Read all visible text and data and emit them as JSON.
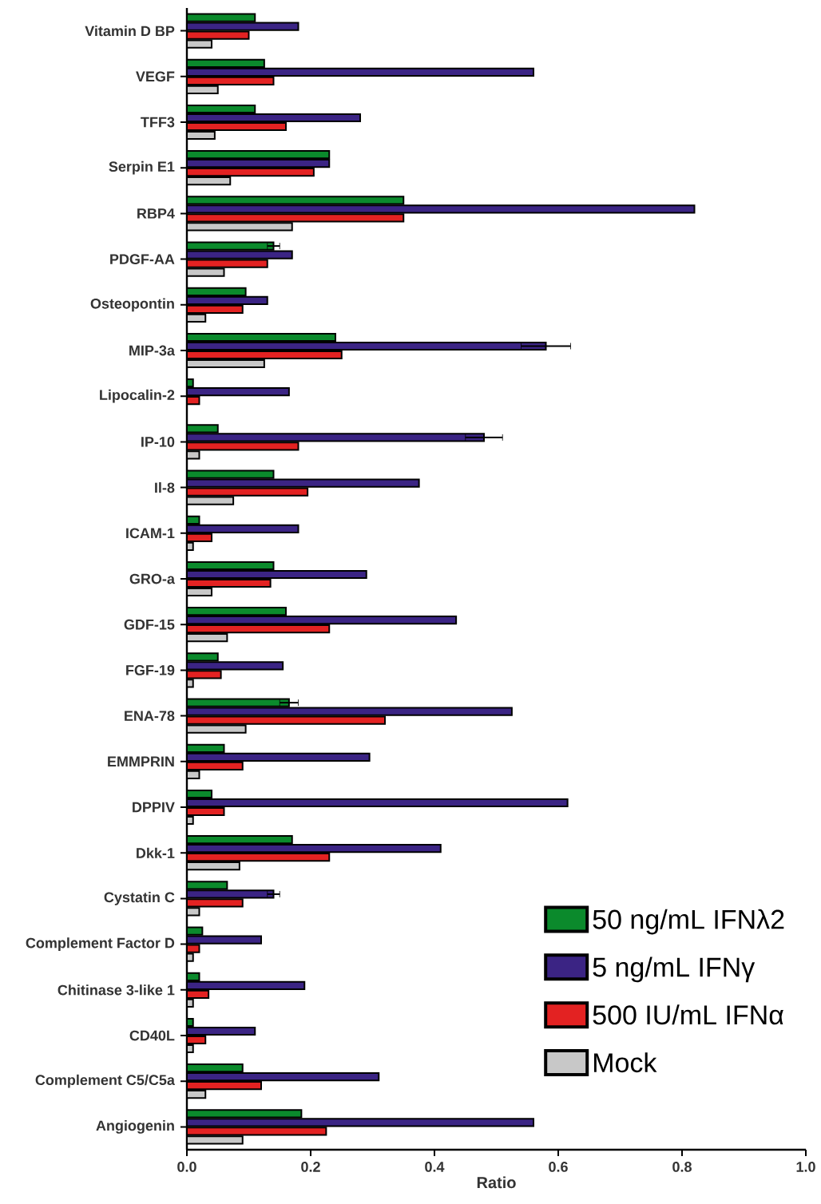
{
  "chart_data": {
    "type": "bar",
    "orientation": "horizontal",
    "xlabel": "Ratio",
    "legend": "bottom right",
    "categories": [
      "Vitamin D BP",
      "VEGF",
      "TFF3",
      "Serpin E1",
      "RBP4",
      "PDGF-AA",
      "Osteopontin",
      "MIP-3a",
      "Lipocalin-2",
      "IP-10",
      "Il-8",
      "ICAM-1",
      "GRO-a",
      "GDF-15",
      "FGF-19",
      "ENA-78",
      "EMMPRIN",
      "DPPIV",
      "Dkk-1",
      "Cystatin C",
      "Complement Factor D",
      "Chitinase 3-like 1",
      "CD40L",
      "Complement C5/C5a",
      "Angiogenin"
    ],
    "xlim": [
      0,
      1
    ],
    "xticks": [
      {
        "value": 0,
        "label": "0.0"
      },
      {
        "value": 0.2,
        "label": "0.2"
      },
      {
        "value": 0.4,
        "label": "0.4"
      },
      {
        "value": 0.6,
        "label": "0.6"
      },
      {
        "value": 0.8,
        "label": "0.8"
      },
      {
        "value": 1,
        "label": "1.0"
      }
    ],
    "series": [
      {
        "name": "50 ng/mL IFNλ2",
        "color": "#0b8a2c",
        "values": [
          0.11,
          0.125,
          0.11,
          0.23,
          0.35,
          0.14,
          0.095,
          0.24,
          0.01,
          0.05,
          0.14,
          0.02,
          0.14,
          0.16,
          0.05,
          0.165,
          0.06,
          0.04,
          0.17,
          0.065,
          0.025,
          0.02,
          0.01,
          0.09,
          0.185
        ],
        "errors": [
          null,
          null,
          null,
          null,
          null,
          0.01,
          null,
          null,
          null,
          null,
          null,
          null,
          null,
          null,
          null,
          0.015,
          null,
          null,
          null,
          null,
          null,
          null,
          null,
          null,
          null
        ]
      },
      {
        "name": "5 ng/mL IFNγ",
        "color": "#3b2484",
        "values": [
          0.18,
          0.56,
          0.28,
          0.23,
          0.82,
          0.17,
          0.13,
          0.58,
          0.165,
          0.48,
          0.375,
          0.18,
          0.29,
          0.435,
          0.155,
          0.525,
          0.295,
          0.615,
          0.41,
          0.14,
          0.12,
          0.19,
          0.11,
          0.31,
          0.56
        ],
        "errors": [
          null,
          null,
          null,
          null,
          null,
          null,
          null,
          0.04,
          null,
          0.03,
          null,
          null,
          null,
          null,
          null,
          null,
          null,
          null,
          null,
          0.01,
          null,
          null,
          null,
          null,
          null
        ]
      },
      {
        "name": "500 IU/mL IFNα",
        "color": "#e32222",
        "values": [
          0.1,
          0.14,
          0.16,
          0.205,
          0.35,
          0.13,
          0.09,
          0.25,
          0.02,
          0.18,
          0.195,
          0.04,
          0.135,
          0.23,
          0.055,
          0.32,
          0.09,
          0.06,
          0.23,
          0.09,
          0.02,
          0.035,
          0.03,
          0.12,
          0.225
        ]
      },
      {
        "name": "Mock",
        "color": "#c8c8c8",
        "values": [
          0.04,
          0.05,
          0.045,
          0.07,
          0.17,
          0.06,
          0.03,
          0.125,
          null,
          0.02,
          0.075,
          0.01,
          0.04,
          0.065,
          0.01,
          0.095,
          0.02,
          0.01,
          0.085,
          0.02,
          0.01,
          0.01,
          0.01,
          0.03,
          0.09
        ]
      }
    ]
  }
}
